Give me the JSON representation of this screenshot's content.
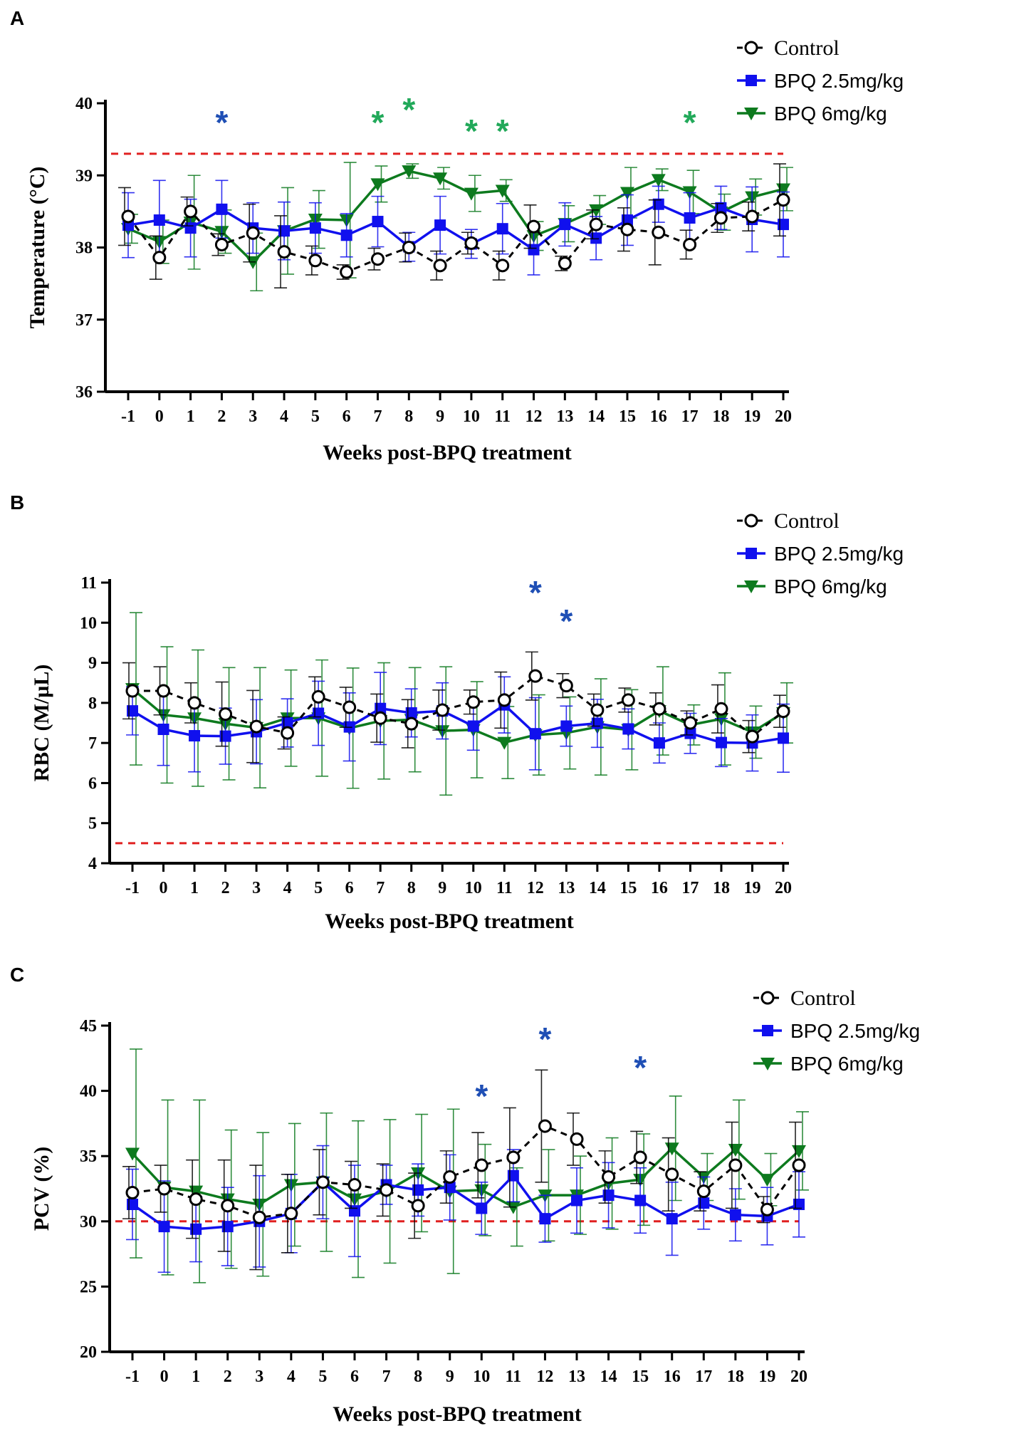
{
  "colors": {
    "control": "#000000",
    "bpq25": "#1010ee",
    "bpq6": "#0d7a1e",
    "star_green": "#22a95a",
    "star_blue": "#1f4fb5",
    "ref": "#e02020"
  },
  "legend_labels": {
    "control": "Control",
    "bpq25": "BPQ 2.5mg/kg",
    "bpq6": "BPQ 6mg/kg"
  },
  "chart_data": [
    {
      "panel": "A",
      "type": "line",
      "xlabel": "Weeks post-BPQ treatment",
      "ylabel": "Temperature (°C)",
      "ylim": [
        36,
        40
      ],
      "yticks": [
        36,
        37,
        38,
        39,
        40
      ],
      "categories": [
        "-1",
        "0",
        "1",
        "2",
        "3",
        "4",
        "5",
        "6",
        "7",
        "8",
        "9",
        "10",
        "11",
        "12",
        "13",
        "14",
        "15",
        "16",
        "17",
        "18",
        "19",
        "20"
      ],
      "reference_line": 39.3,
      "series": [
        {
          "name": "Control",
          "values": [
            38.43,
            37.86,
            38.5,
            38.04,
            38.2,
            37.94,
            37.82,
            37.66,
            37.84,
            38.0,
            37.75,
            38.06,
            37.75,
            38.29,
            37.78,
            38.32,
            38.25,
            38.21,
            38.04,
            38.41,
            38.43,
            38.66
          ],
          "errors": [
            0.4,
            0.3,
            0.2,
            0.15,
            0.4,
            0.5,
            0.2,
            0.1,
            0.15,
            0.2,
            0.2,
            0.15,
            0.2,
            0.3,
            0.1,
            0.2,
            0.3,
            0.45,
            0.2,
            0.2,
            0.2,
            0.5
          ]
        },
        {
          "name": "BPQ 2.5mg/kg",
          "values": [
            38.31,
            38.38,
            38.27,
            38.53,
            38.27,
            38.23,
            38.27,
            38.17,
            38.36,
            38.01,
            38.31,
            38.05,
            38.26,
            37.97,
            38.32,
            38.13,
            38.38,
            38.6,
            38.41,
            38.55,
            38.39,
            38.32
          ],
          "errors": [
            0.45,
            0.55,
            0.4,
            0.4,
            0.35,
            0.4,
            0.35,
            0.3,
            0.35,
            0.2,
            0.4,
            0.2,
            0.35,
            0.35,
            0.3,
            0.3,
            0.35,
            0.25,
            0.35,
            0.3,
            0.45,
            0.45
          ]
        },
        {
          "name": "BPQ 6mg/kg",
          "values": [
            38.26,
            38.08,
            38.35,
            38.22,
            37.8,
            38.23,
            38.39,
            38.38,
            38.88,
            39.06,
            38.96,
            38.75,
            38.79,
            38.16,
            38.33,
            38.52,
            38.76,
            38.94,
            38.77,
            38.49,
            38.7,
            38.81
          ],
          "errors": [
            0.2,
            0.3,
            0.65,
            0.3,
            0.4,
            0.6,
            0.4,
            0.8,
            0.25,
            0.1,
            0.15,
            0.25,
            0.15,
            0.2,
            0.25,
            0.2,
            0.35,
            0.15,
            0.3,
            0.25,
            0.25,
            0.3
          ]
        }
      ],
      "significance": [
        {
          "week": "2",
          "color": "blue"
        },
        {
          "week": "7",
          "color": "green"
        },
        {
          "week": "8",
          "color": "green"
        },
        {
          "week": "10",
          "color": "green"
        },
        {
          "week": "11",
          "color": "green"
        },
        {
          "week": "17",
          "color": "green"
        }
      ]
    },
    {
      "panel": "B",
      "type": "line",
      "xlabel": "Weeks post-BPQ treatment",
      "ylabel": "RBC (M/µL)",
      "ylim": [
        4,
        11
      ],
      "yticks": [
        4,
        5,
        6,
        7,
        8,
        9,
        10,
        11
      ],
      "categories": [
        "-1",
        "0",
        "1",
        "2",
        "3",
        "4",
        "5",
        "6",
        "7",
        "8",
        "9",
        "10",
        "11",
        "12",
        "13",
        "14",
        "15",
        "16",
        "17",
        "18",
        "19",
        "20"
      ],
      "reference_line": 4.5,
      "series": [
        {
          "name": "Control",
          "values": [
            8.3,
            8.3,
            8.0,
            7.72,
            7.41,
            7.25,
            8.15,
            7.89,
            7.62,
            7.48,
            7.82,
            8.02,
            8.07,
            8.67,
            8.43,
            7.82,
            8.07,
            7.85,
            7.5,
            7.85,
            7.16,
            7.79
          ],
          "errors": [
            0.7,
            0.6,
            0.5,
            0.8,
            0.9,
            0.4,
            0.5,
            0.5,
            0.6,
            0.6,
            0.5,
            0.3,
            0.7,
            0.6,
            0.3,
            0.4,
            0.3,
            0.4,
            0.3,
            0.6,
            0.4,
            0.4
          ]
        },
        {
          "name": "BPQ 2.5mg/kg",
          "values": [
            7.8,
            7.34,
            7.18,
            7.17,
            7.28,
            7.5,
            7.74,
            7.4,
            7.86,
            7.75,
            7.8,
            7.42,
            7.95,
            7.23,
            7.42,
            7.49,
            7.35,
            7.0,
            7.24,
            7.01,
            7.0,
            7.12
          ],
          "errors": [
            0.6,
            0.9,
            0.9,
            0.7,
            0.8,
            0.6,
            0.8,
            0.85,
            0.9,
            0.6,
            0.7,
            0.6,
            0.7,
            0.9,
            0.5,
            0.6,
            0.5,
            0.5,
            0.5,
            0.6,
            0.7,
            0.85
          ]
        },
        {
          "name": "BPQ 6mg/kg",
          "values": [
            8.35,
            7.7,
            7.62,
            7.48,
            7.38,
            7.62,
            7.62,
            7.37,
            7.55,
            7.58,
            7.3,
            7.33,
            7.01,
            7.2,
            7.25,
            7.4,
            7.33,
            7.8,
            7.45,
            7.6,
            7.27,
            7.75
          ],
          "errors": [
            1.9,
            1.7,
            1.7,
            1.4,
            1.5,
            1.2,
            1.45,
            1.5,
            1.45,
            1.3,
            1.6,
            1.2,
            0.9,
            1.0,
            0.9,
            1.2,
            1.0,
            1.1,
            0.5,
            1.15,
            0.65,
            0.75
          ]
        }
      ],
      "significance": [
        {
          "week": "12",
          "color": "blue"
        },
        {
          "week": "13",
          "color": "blue"
        }
      ]
    },
    {
      "panel": "C",
      "type": "line",
      "xlabel": "Weeks post-BPQ treatment",
      "ylabel": "PCV (%)",
      "ylim": [
        20,
        45
      ],
      "yticks": [
        20,
        25,
        30,
        35,
        40,
        45
      ],
      "categories": [
        "-1",
        "0",
        "1",
        "2",
        "3",
        "4",
        "5",
        "6",
        "7",
        "8",
        "9",
        "10",
        "11",
        "12",
        "13",
        "14",
        "15",
        "16",
        "17",
        "18",
        "19",
        "20"
      ],
      "reference_line": 30,
      "series": [
        {
          "name": "Control",
          "values": [
            32.2,
            32.5,
            31.7,
            31.2,
            30.3,
            30.6,
            33.0,
            32.8,
            32.4,
            31.2,
            33.4,
            34.3,
            34.9,
            37.3,
            36.3,
            33.4,
            34.9,
            33.6,
            32.3,
            34.3,
            30.9,
            34.3
          ],
          "errors": [
            2.0,
            1.8,
            3.0,
            3.5,
            4.0,
            3.0,
            2.5,
            1.8,
            2.0,
            2.5,
            2.0,
            2.5,
            3.8,
            4.3,
            2.0,
            2.0,
            2.0,
            2.8,
            1.5,
            3.3,
            1.0,
            3.3
          ]
        },
        {
          "name": "BPQ 2.5mg/kg",
          "values": [
            31.3,
            29.6,
            29.4,
            29.6,
            30.0,
            30.6,
            33.0,
            30.8,
            32.8,
            32.4,
            32.6,
            31.0,
            33.5,
            30.2,
            31.6,
            32.0,
            31.6,
            30.2,
            31.4,
            30.5,
            30.4,
            31.3
          ],
          "errors": [
            2.7,
            3.5,
            2.5,
            3.0,
            3.5,
            3.0,
            2.8,
            3.5,
            1.5,
            2.0,
            2.5,
            2.0,
            2.0,
            1.8,
            2.5,
            2.5,
            2.5,
            2.8,
            2.0,
            2.0,
            2.2,
            2.5
          ]
        },
        {
          "name": "BPQ 6mg/kg",
          "values": [
            35.2,
            32.6,
            32.3,
            31.7,
            31.3,
            32.8,
            33.0,
            31.7,
            32.3,
            33.7,
            32.3,
            32.4,
            31.1,
            32.0,
            32.0,
            32.9,
            33.2,
            35.6,
            33.4,
            35.5,
            33.2,
            35.4
          ],
          "errors": [
            8.0,
            6.7,
            7.0,
            5.3,
            5.5,
            4.7,
            5.3,
            6.0,
            5.5,
            4.5,
            6.3,
            3.5,
            3.0,
            3.5,
            3.0,
            3.5,
            3.5,
            4.0,
            1.8,
            3.8,
            2.0,
            3.0
          ]
        }
      ],
      "significance": [
        {
          "week": "10",
          "color": "blue"
        },
        {
          "week": "12",
          "color": "blue"
        },
        {
          "week": "15",
          "color": "blue"
        }
      ]
    }
  ]
}
